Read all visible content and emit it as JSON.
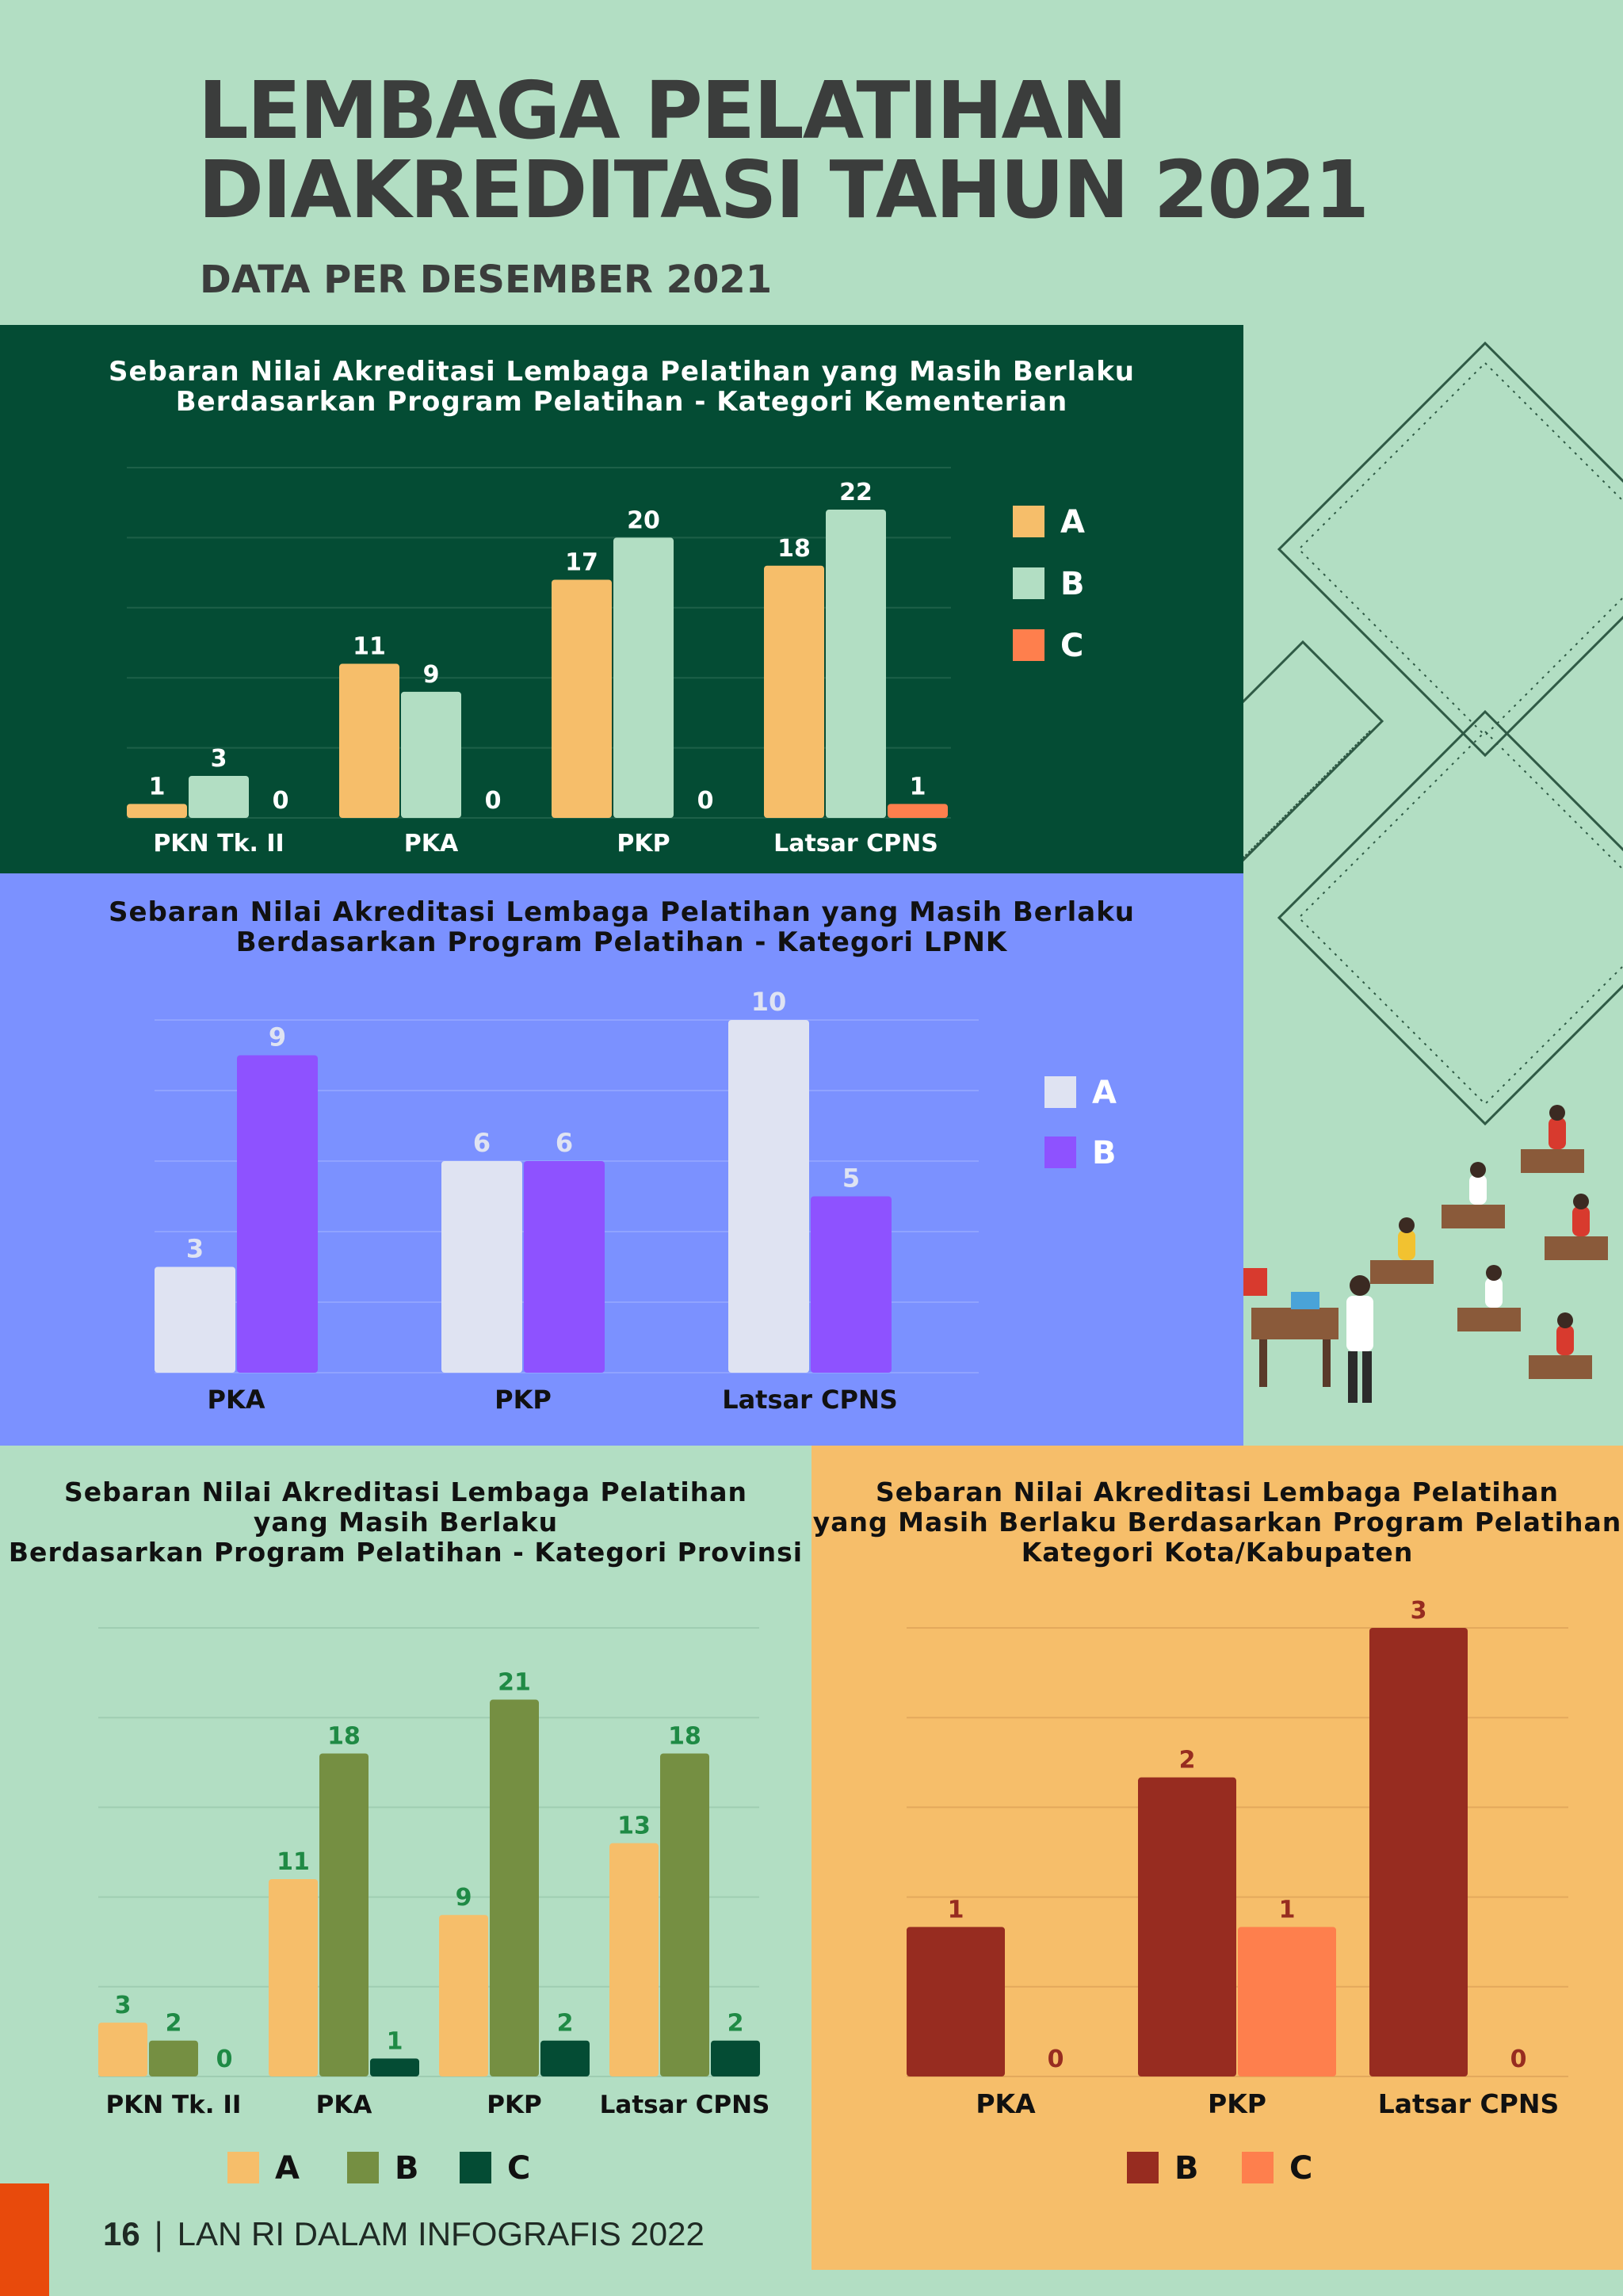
{
  "header": {
    "title_line1": "LEMBAGA PELATIHAN",
    "title_line2": "DIAKREDITASI TAHUN 2021",
    "subtitle": "DATA PER DESEMBER 2021"
  },
  "footer": {
    "page_number": "16",
    "separator": "|",
    "text": "LAN RI DALAM INFOGRAFIS 2022"
  },
  "chart_data": [
    {
      "id": "kementerian",
      "type": "bar",
      "title_lines": [
        "Sebaran Nilai Akreditasi Lembaga Pelatihan yang Masih Berlaku",
        "Berdasarkan Program Pelatihan - Kategori Kementerian"
      ],
      "categories": [
        "PKN Tk. II",
        "PKA",
        "PKP",
        "Latsar CPNS"
      ],
      "series": [
        {
          "name": "A",
          "values": [
            1,
            11,
            17,
            18
          ],
          "color": "#f6be6a"
        },
        {
          "name": "B",
          "values": [
            3,
            9,
            20,
            22
          ],
          "color": "#b2dec3"
        },
        {
          "name": "C",
          "values": [
            0,
            0,
            0,
            1
          ],
          "color": "#fe7f4d"
        }
      ],
      "ylim": [
        0,
        25
      ],
      "grid": true,
      "legend": "right",
      "colors": {
        "title": "#ffffff",
        "label": "#ffffff",
        "grid": "#1d6048",
        "legend_text": "#ffffff"
      }
    },
    {
      "id": "lpnk",
      "type": "bar",
      "title_lines": [
        "Sebaran Nilai Akreditasi Lembaga Pelatihan yang Masih Berlaku",
        "Berdasarkan Program Pelatihan - Kategori LPNK"
      ],
      "categories": [
        "PKA",
        "PKP",
        "Latsar CPNS"
      ],
      "series": [
        {
          "name": "A",
          "values": [
            3,
            6,
            10
          ],
          "color": "#dfe3f2"
        },
        {
          "name": "B",
          "values": [
            9,
            6,
            5
          ],
          "color": "#8e52ff"
        }
      ],
      "ylim": [
        0,
        10
      ],
      "grid": true,
      "legend": "right",
      "colors": {
        "title": "#111111",
        "label": "#dfe3f2",
        "grid": "#90a3ff",
        "legend_text": "#ffffff",
        "category": "#111111"
      }
    },
    {
      "id": "provinsi",
      "type": "bar",
      "title_lines": [
        "Sebaran Nilai Akreditasi Lembaga Pelatihan",
        "yang Masih Berlaku",
        "Berdasarkan Program Pelatihan - Kategori Provinsi"
      ],
      "categories": [
        "PKN Tk. II",
        "PKA",
        "PKP",
        "Latsar CPNS"
      ],
      "series": [
        {
          "name": "A",
          "values": [
            3,
            11,
            9,
            13
          ],
          "color": "#f6be6a"
        },
        {
          "name": "B",
          "values": [
            2,
            18,
            21,
            18
          ],
          "color": "#758f42"
        },
        {
          "name": "C",
          "values": [
            0,
            1,
            2,
            2
          ],
          "color": "#044c34"
        }
      ],
      "ylim": [
        0,
        25
      ],
      "grid": true,
      "legend": "bottom",
      "colors": {
        "title": "#111111",
        "label": "#1f8a45",
        "grid": "#9fcdb2",
        "legend_text": "#111111",
        "category": "#111111"
      }
    },
    {
      "id": "kota",
      "type": "bar",
      "title_lines": [
        "Sebaran Nilai Akreditasi Lembaga Pelatihan",
        "yang Masih Berlaku Berdasarkan Program Pelatihan",
        "Kategori Kota/Kabupaten"
      ],
      "categories": [
        "PKA",
        "PKP",
        "Latsar CPNS"
      ],
      "series": [
        {
          "name": "B",
          "values": [
            1,
            2,
            3
          ],
          "color": "#972c20"
        },
        {
          "name": "C",
          "values": [
            0,
            1,
            0
          ],
          "color": "#fe7f4d"
        }
      ],
      "ylim": [
        0,
        3
      ],
      "grid": true,
      "legend": "bottom",
      "colors": {
        "title": "#111111",
        "label": "#972c20",
        "grid": "#e3a95c",
        "legend_text": "#111111",
        "category": "#111111"
      }
    }
  ]
}
